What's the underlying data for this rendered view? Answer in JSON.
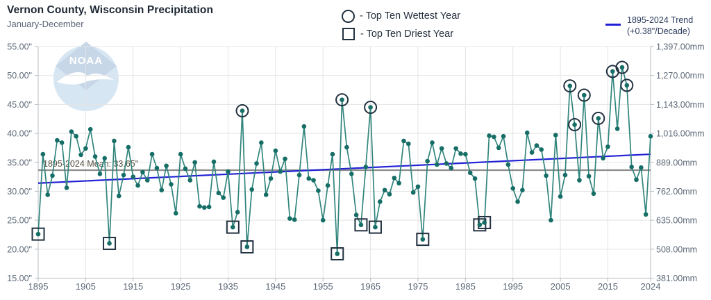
{
  "header": {
    "title": "Vernon County, Wisconsin Precipitation",
    "subtitle": "January-December"
  },
  "legend": {
    "wettest_label": "- Top Ten Wettest Year",
    "driest_label": "- Top Ten Driest Year",
    "trend_line1": "1895-2024 Trend",
    "trend_line2": "(+0.38\"/Decade)"
  },
  "watermark": {
    "text": "NOAA"
  },
  "colors": {
    "series_line": "#31857c",
    "series_dot": "#166e67",
    "marker_outline": "#223140",
    "trend_line": "#2121d6",
    "mean_line": "#8c8c8c",
    "grid": "#e4e4e4",
    "axis": "#b6bcc2",
    "tick_text": "#5c6878",
    "mean_text": "#564f42",
    "watermark_circle": "#d3e4f2",
    "watermark_sky": "#c2d3e6"
  },
  "chart_data": {
    "type": "line",
    "title": "Vernon County, Wisconsin Precipitation",
    "subtitle": "January-December",
    "ylabel_left": "inches",
    "ylabel_right": "millimeters",
    "xlim": [
      1895,
      2024
    ],
    "ylim": [
      15,
      55
    ],
    "grid": true,
    "legend_position": "top",
    "x_ticks": [
      1895,
      1905,
      1915,
      1925,
      1935,
      1945,
      1955,
      1965,
      1975,
      1985,
      1995,
      2005,
      2015,
      2024
    ],
    "y_tick_values": [
      55,
      50,
      45,
      40,
      35,
      30,
      25,
      20,
      15
    ],
    "y_tick_labels_in": [
      "55.00\"",
      "50.00\"",
      "45.00\"",
      "40.00\"",
      "35.00\"",
      "30.00\"",
      "25.00\"",
      "20.00\"",
      "15.00\""
    ],
    "y_tick_labels_mm": [
      "1,397.00mm",
      "1,270.00mm",
      "1,143.00mm",
      "1,016.00mm",
      "889.00mm",
      "762.00mm",
      "635.00mm",
      "508.00mm",
      "381.00mm"
    ],
    "mean": 33.65,
    "mean_label": "1895-2024 Mean: 33.65\"",
    "trend": {
      "per_decade_inches": 0.38,
      "start_value": 31.4,
      "end_value": 36.4
    },
    "top_ten_wettest_years": [
      1938,
      1959,
      1965,
      2007,
      2008,
      2010,
      2013,
      2016,
      2018,
      2019
    ],
    "top_ten_driest_years": [
      1895,
      1910,
      1936,
      1939,
      1958,
      1963,
      1966,
      1976,
      1988,
      1989
    ],
    "x": [
      1895,
      1896,
      1897,
      1898,
      1899,
      1900,
      1901,
      1902,
      1903,
      1904,
      1905,
      1906,
      1907,
      1908,
      1909,
      1910,
      1911,
      1912,
      1913,
      1914,
      1915,
      1916,
      1917,
      1918,
      1919,
      1920,
      1921,
      1922,
      1923,
      1924,
      1925,
      1926,
      1927,
      1928,
      1929,
      1930,
      1931,
      1932,
      1933,
      1934,
      1935,
      1936,
      1937,
      1938,
      1939,
      1940,
      1941,
      1942,
      1943,
      1944,
      1945,
      1946,
      1947,
      1948,
      1949,
      1950,
      1951,
      1952,
      1953,
      1954,
      1955,
      1956,
      1957,
      1958,
      1959,
      1960,
      1961,
      1962,
      1963,
      1964,
      1965,
      1966,
      1967,
      1968,
      1969,
      1970,
      1971,
      1972,
      1973,
      1974,
      1975,
      1976,
      1977,
      1978,
      1979,
      1980,
      1981,
      1982,
      1983,
      1984,
      1985,
      1986,
      1987,
      1988,
      1989,
      1990,
      1991,
      1992,
      1993,
      1994,
      1995,
      1996,
      1997,
      1998,
      1999,
      2000,
      2001,
      2002,
      2003,
      2004,
      2005,
      2006,
      2007,
      2008,
      2009,
      2010,
      2011,
      2012,
      2013,
      2014,
      2015,
      2016,
      2017,
      2018,
      2019,
      2020,
      2021,
      2022,
      2023,
      2024
    ],
    "values": [
      22.6,
      36.4,
      29.4,
      32.7,
      38.8,
      38.4,
      30.6,
      40.3,
      39.5,
      36.3,
      37.4,
      40.7,
      36.0,
      33.0,
      35.7,
      21.0,
      38.7,
      29.2,
      32.8,
      37.6,
      32.5,
      31.0,
      33.3,
      31.9,
      36.4,
      34.0,
      30.2,
      34.4,
      31.2,
      26.2,
      36.4,
      33.9,
      31.9,
      35.0,
      27.4,
      27.2,
      27.3,
      35.1,
      29.7,
      28.9,
      33.4,
      23.8,
      26.4,
      43.9,
      20.4,
      30.3,
      34.8,
      38.4,
      29.4,
      32.2,
      37.0,
      33.4,
      35.6,
      25.3,
      25.1,
      32.8,
      41.2,
      32.2,
      31.9,
      30.1,
      25.0,
      31.0,
      36.4,
      19.2,
      45.8,
      37.6,
      33.0,
      25.9,
      24.2,
      34.2,
      44.5,
      23.8,
      28.2,
      30.2,
      29.5,
      32.3,
      31.4,
      38.7,
      38.2,
      29.8,
      30.8,
      21.7,
      35.2,
      38.4,
      34.6,
      37.4,
      34.8,
      34.0,
      37.4,
      36.5,
      36.4,
      33.2,
      32.2,
      24.2,
      24.6,
      39.6,
      39.4,
      37.5,
      39.5,
      34.6,
      30.5,
      28.2,
      30.2,
      40.1,
      36.7,
      37.9,
      37.2,
      32.7,
      25.0,
      39.7,
      29.1,
      32.8,
      48.2,
      41.5,
      31.9,
      46.6,
      32.6,
      29.6,
      42.6,
      35.7,
      37.7,
      50.7,
      40.8,
      51.4,
      48.3,
      34.2,
      32.0,
      34.1,
      26.0,
      39.5
    ]
  }
}
